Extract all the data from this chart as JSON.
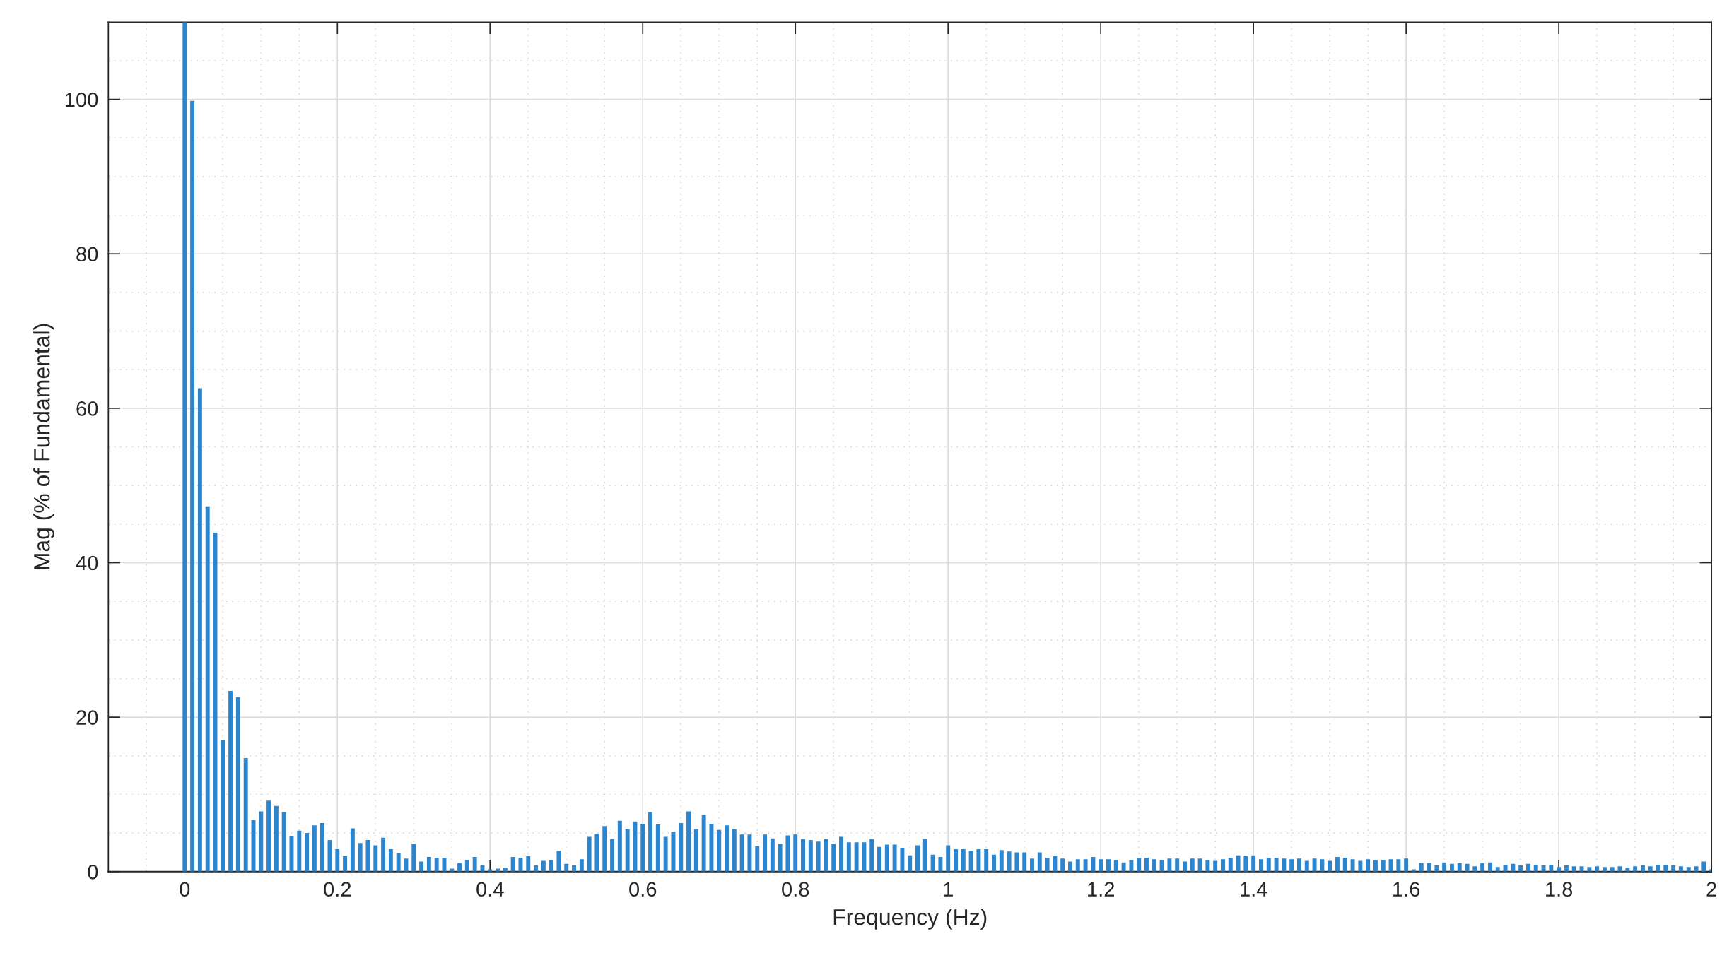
{
  "chart_data": {
    "type": "bar",
    "xlabel": "Frequency (Hz)",
    "ylabel": "Mag (% of Fundamental)",
    "color": "#2b86cf",
    "x": [
      0,
      0.01,
      0.02,
      0.03,
      0.04,
      0.05,
      0.06,
      0.07,
      0.08,
      0.09,
      0.1,
      0.11,
      0.12,
      0.13,
      0.14,
      0.15,
      0.16,
      0.17,
      0.18,
      0.19,
      0.2,
      0.21,
      0.22,
      0.23,
      0.24,
      0.25,
      0.26,
      0.27,
      0.28,
      0.29,
      0.3,
      0.31,
      0.32,
      0.33,
      0.34,
      0.35,
      0.36,
      0.37,
      0.38,
      0.39,
      0.4,
      0.41,
      0.42,
      0.43,
      0.44,
      0.45,
      0.46,
      0.47,
      0.48,
      0.49,
      0.5,
      0.51,
      0.52,
      0.53,
      0.54,
      0.55,
      0.56,
      0.57,
      0.58,
      0.59,
      0.6,
      0.61,
      0.62,
      0.63,
      0.64,
      0.65,
      0.66,
      0.67,
      0.68,
      0.69,
      0.7,
      0.71,
      0.72,
      0.73,
      0.74,
      0.75,
      0.76,
      0.77,
      0.78,
      0.79,
      0.8,
      0.81,
      0.82,
      0.83,
      0.84,
      0.85,
      0.86,
      0.87,
      0.88,
      0.89,
      0.9,
      0.91,
      0.92,
      0.93,
      0.94,
      0.95,
      0.96,
      0.97,
      0.98,
      0.99,
      1.0,
      1.01,
      1.02,
      1.03,
      1.04,
      1.05,
      1.06,
      1.07,
      1.08,
      1.09,
      1.1,
      1.11,
      1.12,
      1.13,
      1.14,
      1.15,
      1.16,
      1.17,
      1.18,
      1.19,
      1.2,
      1.21,
      1.22,
      1.23,
      1.24,
      1.25,
      1.26,
      1.27,
      1.28,
      1.29,
      1.3,
      1.31,
      1.32,
      1.33,
      1.34,
      1.35,
      1.36,
      1.37,
      1.38,
      1.39,
      1.4,
      1.41,
      1.42,
      1.43,
      1.44,
      1.45,
      1.46,
      1.47,
      1.48,
      1.49,
      1.5,
      1.51,
      1.52,
      1.53,
      1.54,
      1.55,
      1.56,
      1.57,
      1.58,
      1.59,
      1.6,
      1.61,
      1.62,
      1.63,
      1.64,
      1.65,
      1.66,
      1.67,
      1.68,
      1.69,
      1.7,
      1.71,
      1.72,
      1.73,
      1.74,
      1.75,
      1.76,
      1.77,
      1.78,
      1.79,
      1.8,
      1.81,
      1.82,
      1.83,
      1.84,
      1.85,
      1.86,
      1.87,
      1.88,
      1.89,
      1.9,
      1.91,
      1.92,
      1.93,
      1.94,
      1.95,
      1.96,
      1.97,
      1.98,
      1.99,
      2.0
    ],
    "values": [
      110,
      99.8,
      62.6,
      47.3,
      43.9,
      17.0,
      23.4,
      22.6,
      14.7,
      6.7,
      7.8,
      9.2,
      8.5,
      7.7,
      4.6,
      5.3,
      5.0,
      6.0,
      6.3,
      4.1,
      2.9,
      2.0,
      5.6,
      3.7,
      4.1,
      3.4,
      4.4,
      2.9,
      2.4,
      1.7,
      3.6,
      1.3,
      1.9,
      1.8,
      1.8,
      0.4,
      1.1,
      1.5,
      1.9,
      0.8,
      0.3,
      0.4,
      0.5,
      1.9,
      1.8,
      2.0,
      0.8,
      1.4,
      1.5,
      2.7,
      1.0,
      0.8,
      1.6,
      4.5,
      4.9,
      5.9,
      4.2,
      6.6,
      5.5,
      6.5,
      6.2,
      7.7,
      6.1,
      4.5,
      5.2,
      6.3,
      7.8,
      5.5,
      7.3,
      6.2,
      5.4,
      6.0,
      5.5,
      4.8,
      4.8,
      3.3,
      4.8,
      4.3,
      3.6,
      4.7,
      4.8,
      4.2,
      4.1,
      3.9,
      4.2,
      3.6,
      4.5,
      3.8,
      3.8,
      3.8,
      4.2,
      3.2,
      3.5,
      3.5,
      3.1,
      2.1,
      3.4,
      4.2,
      2.2,
      1.9,
      3.4,
      2.9,
      2.9,
      2.7,
      2.9,
      2.9,
      2.2,
      2.8,
      2.6,
      2.5,
      2.5,
      1.7,
      2.5,
      1.8,
      2.0,
      1.7,
      1.3,
      1.6,
      1.6,
      1.9,
      1.6,
      1.6,
      1.5,
      1.2,
      1.5,
      1.8,
      1.8,
      1.6,
      1.5,
      1.7,
      1.7,
      1.3,
      1.7,
      1.7,
      1.5,
      1.4,
      1.6,
      1.8,
      2.1,
      2.0,
      2.1,
      1.6,
      1.8,
      1.8,
      1.7,
      1.6,
      1.7,
      1.4,
      1.7,
      1.6,
      1.4,
      1.9,
      1.8,
      1.6,
      1.4,
      1.6,
      1.5,
      1.5,
      1.6,
      1.6,
      1.7,
      0.3,
      1.1,
      1.1,
      0.8,
      1.2,
      1.0,
      1.1,
      1.0,
      0.7,
      1.1,
      1.2,
      0.6,
      0.9,
      1.0,
      0.8,
      1.0,
      0.9,
      0.8,
      0.9,
      0.6,
      0.8,
      0.7,
      0.7,
      0.6,
      0.7,
      0.6,
      0.6,
      0.7,
      0.5,
      0.7,
      0.8,
      0.7,
      0.9,
      0.9,
      0.8,
      0.7,
      0.6,
      0.7,
      1.3,
      0.3
    ],
    "xlim": [
      -0.1,
      2
    ],
    "xticks": [
      0,
      0.2,
      0.4,
      0.6,
      0.8,
      1,
      1.2,
      1.4,
      1.6,
      1.8,
      2
    ],
    "ylim": [
      0,
      110
    ],
    "yticks": [
      0,
      20,
      40,
      60,
      80,
      100
    ],
    "grid": true,
    "legend": false
  }
}
